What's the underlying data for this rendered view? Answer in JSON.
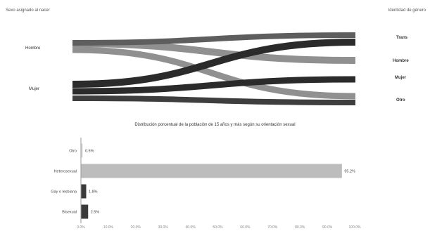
{
  "sankey": {
    "left_header": "Sexo asignado al nacer",
    "right_header": "Identidad de género",
    "left_nodes": [
      "Hombre",
      "Mujer"
    ],
    "right_nodes": [
      "Trans",
      "Hombre",
      "Mujer",
      "Otro"
    ],
    "colors": {
      "hombre": "#5e5e5e",
      "hombre_alt": "#8a8a8a",
      "mujer": "#2b2b2b",
      "mujer_alt": "#3e3e3e"
    }
  },
  "chart_data": [
    {
      "type": "sankey",
      "title": "",
      "left_label": "Sexo asignado al nacer",
      "right_label": "Identidad de género",
      "sources": [
        "Hombre",
        "Mujer"
      ],
      "targets": [
        "Trans",
        "Hombre",
        "Mujer",
        "Otro"
      ],
      "links": [
        {
          "source": "Hombre",
          "target": "Trans"
        },
        {
          "source": "Hombre",
          "target": "Hombre"
        },
        {
          "source": "Hombre",
          "target": "Otro"
        },
        {
          "source": "Mujer",
          "target": "Trans"
        },
        {
          "source": "Mujer",
          "target": "Mujer"
        },
        {
          "source": "Mujer",
          "target": "Otro"
        }
      ]
    },
    {
      "type": "bar",
      "orientation": "horizontal",
      "title": "Distribución porcentual de la población de 15 años y más según su orientación sexual",
      "categories": [
        "Otro",
        "Heterosexual",
        "Gay o lesbiana",
        "Bisexual"
      ],
      "values": [
        0.5,
        95.2,
        1.8,
        2.5
      ],
      "value_labels": [
        "0.5%",
        "95.2%",
        "1.8%",
        "2.5%"
      ],
      "bar_colors": [
        "#d8d8d8",
        "#bdbdbd",
        "#3a3a3a",
        "#3a3a3a"
      ],
      "xlim": [
        0,
        100
      ],
      "xticks": [
        "0.0%",
        "10.0%",
        "20.0%",
        "30.0%",
        "40.0%",
        "50.0%",
        "60.0%",
        "70.0%",
        "80.0%",
        "90.0%",
        "100.0%"
      ],
      "grid": false
    }
  ]
}
